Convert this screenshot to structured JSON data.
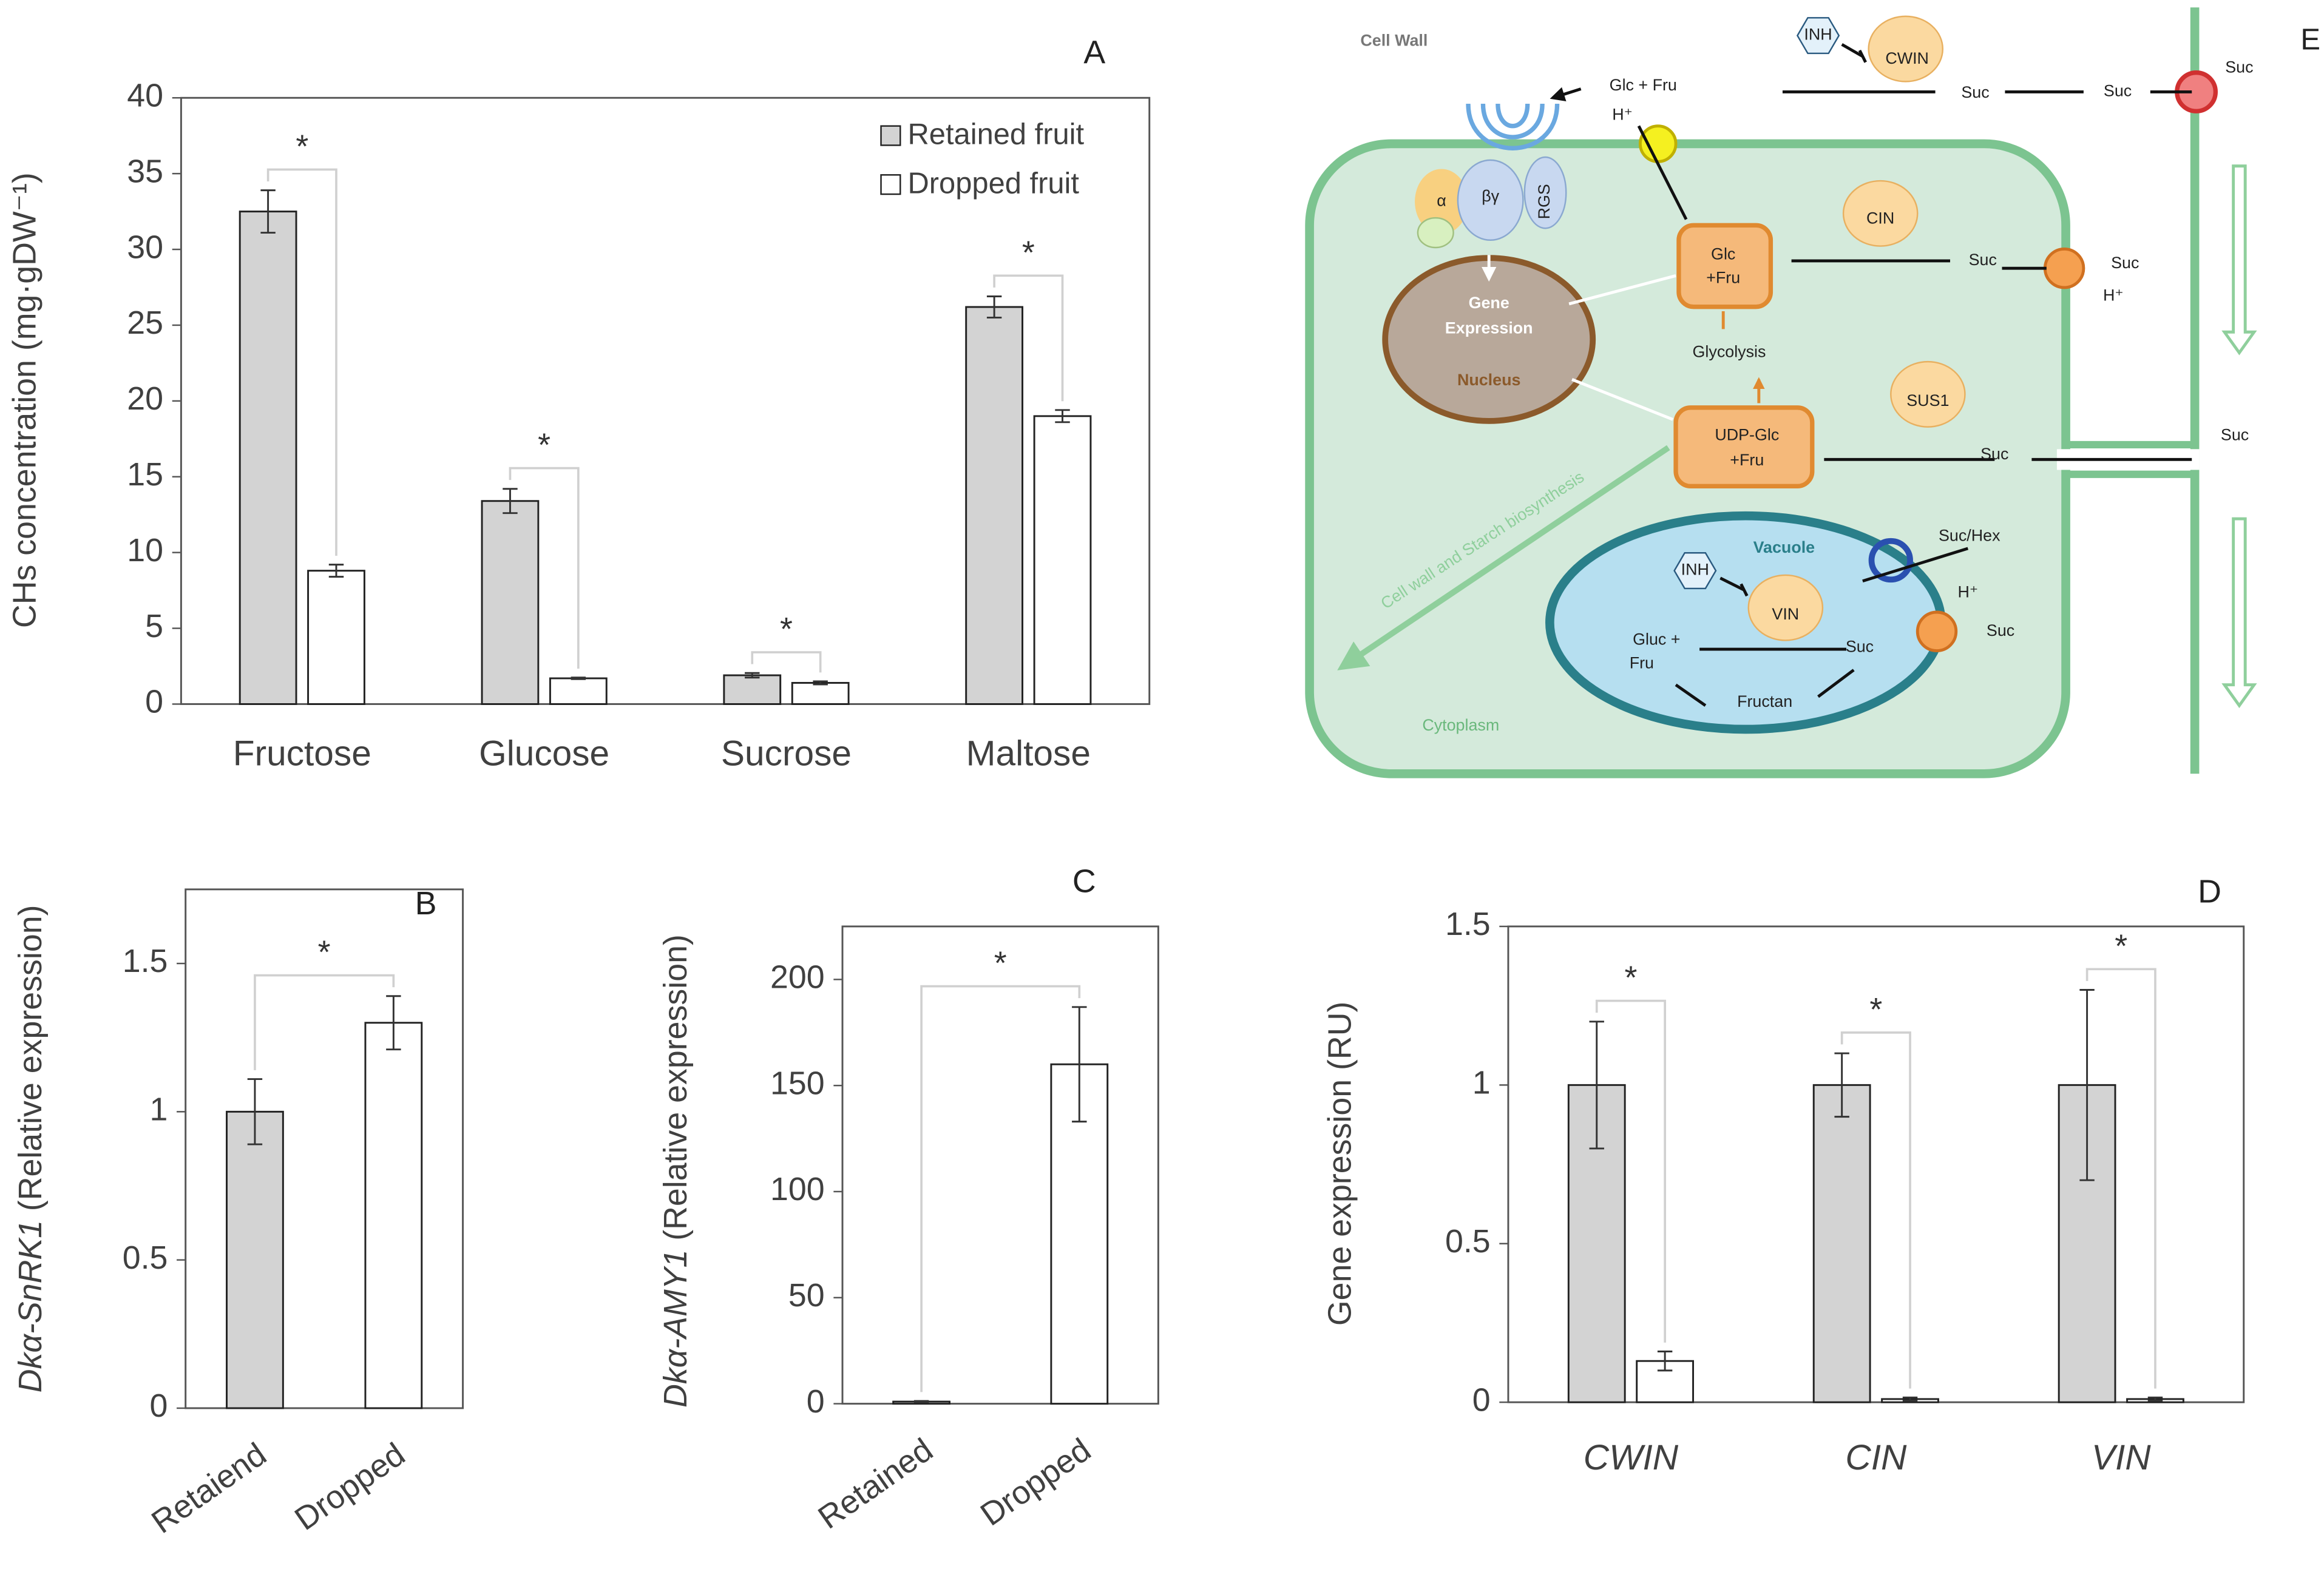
{
  "chart_data": [
    {
      "type": "bar",
      "panel": "A",
      "ylabel": "CHs concentration (mg·gDW⁻¹)",
      "categories": [
        "Fructose",
        "Glucose",
        "Sucrose",
        "Maltose"
      ],
      "series": [
        {
          "name": "Retained fruit",
          "color": "#d3d3d3",
          "values": [
            32.5,
            13.4,
            1.9,
            26.2
          ],
          "errors": [
            1.4,
            0.8,
            0.15,
            0.7
          ]
        },
        {
          "name": "Dropped fruit",
          "color": "#ffffff",
          "values": [
            8.8,
            1.7,
            1.4,
            19.0
          ],
          "errors": [
            0.4,
            0.05,
            0.1,
            0.4
          ]
        }
      ],
      "annotations": [
        "*",
        "*",
        "*",
        "*"
      ],
      "ylim": [
        0,
        40
      ],
      "yticks": [
        0,
        5,
        10,
        15,
        20,
        25,
        30,
        35,
        40
      ]
    },
    {
      "type": "bar",
      "panel": "B",
      "ylabel": [
        "Dkα-SnRK1",
        "(Relative expression)"
      ],
      "categories": [
        "Retaiend",
        "Dropped"
      ],
      "values": [
        1.0,
        1.3
      ],
      "errors": [
        0.11,
        0.09
      ],
      "colors": [
        "#d3d3d3",
        "#ffffff"
      ],
      "annotations": [
        "*"
      ],
      "ylim": [
        0,
        1.75
      ],
      "yticks": [
        0,
        0.5,
        1,
        1.5
      ]
    },
    {
      "type": "bar",
      "panel": "C",
      "ylabel": [
        "Dkα-AMY1",
        "(Relative expression)"
      ],
      "categories": [
        "Retained",
        "Dropped"
      ],
      "values": [
        1,
        160
      ],
      "errors": [
        0.3,
        27
      ],
      "colors": [
        "#d3d3d3",
        "#ffffff"
      ],
      "annotations": [
        "*"
      ],
      "ylim": [
        0,
        225
      ],
      "yticks": [
        0,
        50,
        100,
        150,
        200
      ]
    },
    {
      "type": "bar",
      "panel": "D",
      "ylabel": "Gene expression (RU)",
      "categories": [
        "CWIN",
        "CIN",
        "VIN"
      ],
      "series": [
        {
          "color": "#d3d3d3",
          "values": [
            1,
            1,
            1
          ],
          "errors": [
            0.2,
            0.1,
            0.3
          ]
        },
        {
          "color": "#ffffff",
          "values": [
            0.13,
            0.01,
            0.01
          ],
          "errors": [
            0.03,
            0.005,
            0.005
          ]
        }
      ],
      "annotations": [
        "*",
        "*",
        "*"
      ],
      "ylim": [
        0,
        1.5
      ],
      "yticks": [
        0,
        0.5,
        1,
        1.5
      ]
    }
  ],
  "diagram": {
    "labels": [
      "E",
      "Cell Wall",
      "INH",
      "CWIN",
      "Suc",
      "Suc",
      "Suc",
      "Glc + Fru",
      "H⁺",
      "α",
      "βγ",
      "RGS",
      "CIN",
      "Glc",
      "+Fru",
      "Gene",
      "Expression",
      "Nucleus",
      "Suc",
      "Suc",
      "H⁺",
      "Glycolysis",
      "SUS1",
      "UDP-Glc",
      "+Fru",
      "Suc",
      "Suc",
      "Cell wall and Starch biosynthesis",
      "Vacuole",
      "INH",
      "VIN",
      "Suc/Hex",
      "H⁺",
      "Suc",
      "Gluc +",
      "Fru",
      "Suc",
      "Fructan",
      "Cytoplasm"
    ]
  }
}
